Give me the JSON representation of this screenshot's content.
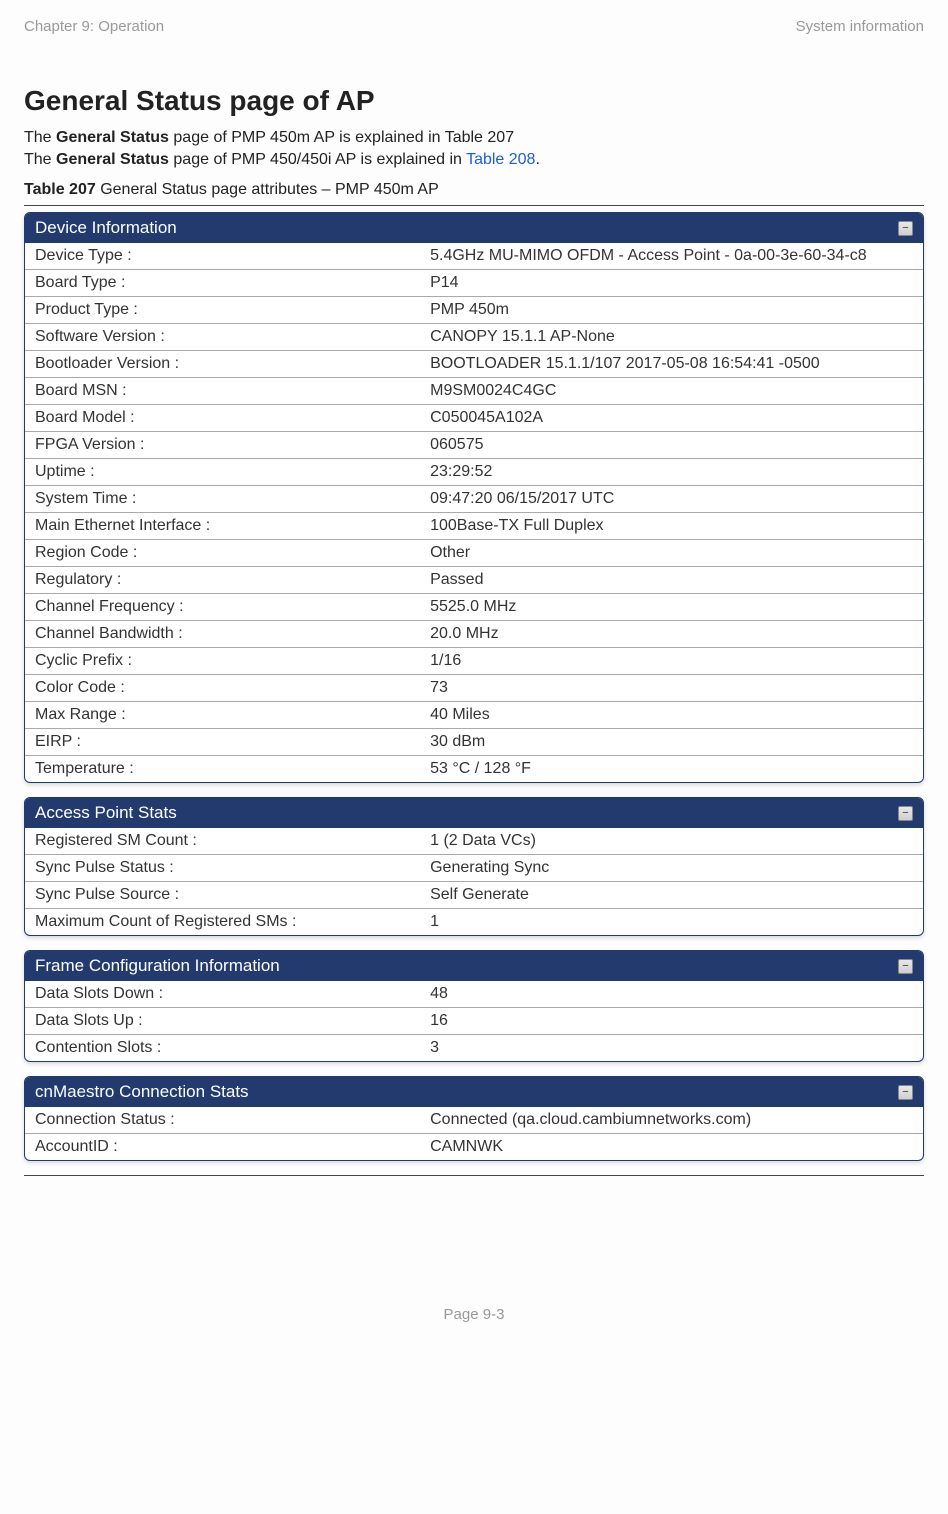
{
  "header": {
    "left": "Chapter 9:  Operation",
    "right": "System information"
  },
  "title": "General Status page of AP",
  "intro1_prefix": "The ",
  "intro1_bold": "General Status",
  "intro1_suffix": " page of PMP 450m AP is explained in Table 207",
  "intro2_prefix": "The ",
  "intro2_bold": "General Status",
  "intro2_mid": " page of PMP 450/450i AP is explained in ",
  "intro2_link": "Table 208",
  "intro2_end": ".",
  "tablecap_bold": "Table 207",
  "tablecap_rest": " General Status page attributes – PMP 450m AP",
  "panels": {
    "devinfo": {
      "title": "Device Information",
      "rows": [
        {
          "label": "Device Type :",
          "value": "5.4GHz MU-MIMO OFDM - Access Point - 0a-00-3e-60-34-c8"
        },
        {
          "label": "Board Type :",
          "value": "P14"
        },
        {
          "label": "Product Type :",
          "value": "PMP 450m"
        },
        {
          "label": "Software Version :",
          "value": "CANOPY 15.1.1  AP-None"
        },
        {
          "label": "Bootloader Version :",
          "value": "BOOTLOADER 15.1.1/107 2017-05-08 16:54:41 -0500"
        },
        {
          "label": "Board MSN :",
          "value": "M9SM0024C4GC"
        },
        {
          "label": "Board Model :",
          "value": "C050045A102A"
        },
        {
          "label": "FPGA Version :",
          "value": "060575"
        },
        {
          "label": "Uptime :",
          "value": "23:29:52"
        },
        {
          "label": "System Time :",
          "value": "09:47:20 06/15/2017 UTC"
        },
        {
          "label": "Main Ethernet Interface :",
          "value": "100Base-TX Full Duplex"
        },
        {
          "label": "Region Code :",
          "value": "Other"
        },
        {
          "label": "Regulatory :",
          "value": "Passed"
        },
        {
          "label": "Channel Frequency :",
          "value": "5525.0 MHz"
        },
        {
          "label": "Channel Bandwidth :",
          "value": "20.0 MHz"
        },
        {
          "label": "Cyclic Prefix :",
          "value": "1/16"
        },
        {
          "label": "Color Code :",
          "value": "73"
        },
        {
          "label": "Max Range :",
          "value": "40 Miles"
        },
        {
          "label": "EIRP :",
          "value": "30 dBm"
        },
        {
          "label": "Temperature :",
          "value": "53 °C / 128 °F"
        }
      ]
    },
    "apstats": {
      "title": "Access Point Stats",
      "rows": [
        {
          "label": "Registered SM Count :",
          "value": "1 (2 Data VCs)"
        },
        {
          "label": "Sync Pulse Status :",
          "value": "Generating Sync"
        },
        {
          "label": "Sync Pulse Source :",
          "value": "Self Generate"
        },
        {
          "label": "Maximum Count of Registered SMs :",
          "value": "1"
        }
      ]
    },
    "frameconf": {
      "title": "Frame Configuration Information",
      "rows": [
        {
          "label": "Data Slots Down :",
          "value": "48"
        },
        {
          "label": "Data Slots Up :",
          "value": "16"
        },
        {
          "label": "Contention Slots :",
          "value": "3"
        }
      ]
    },
    "cnmaestro": {
      "title": "cnMaestro Connection Stats",
      "rows": [
        {
          "label": "Connection Status :",
          "value": "Connected (qa.cloud.cambiumnetworks.com)"
        },
        {
          "label": "AccountID :",
          "value": "CAMNWK"
        }
      ]
    }
  },
  "footer": "Page 9-3",
  "colors": {
    "panel_header_bg": "#233a6f",
    "panel_header_text": "#ffffff",
    "link": "#1a5fd6",
    "muted": "#999999"
  }
}
